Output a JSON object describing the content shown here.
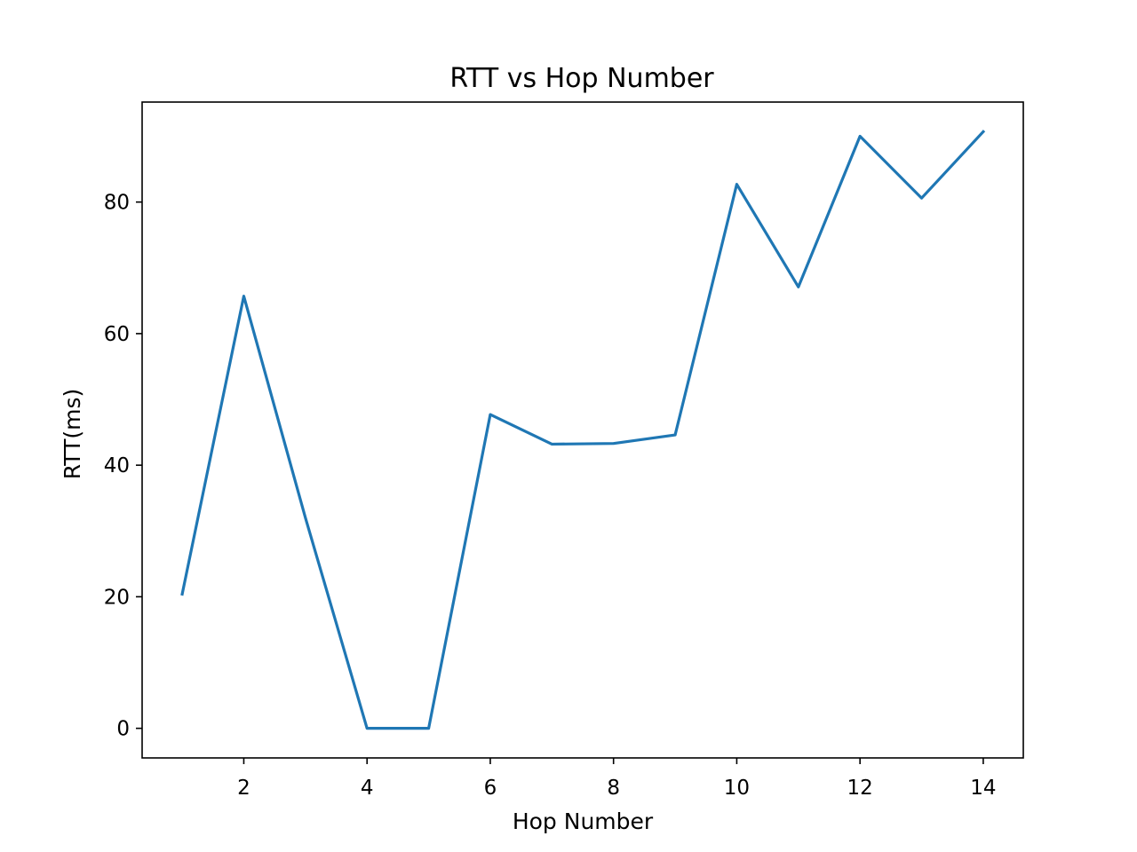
{
  "chart_data": {
    "type": "line",
    "title": "RTT vs Hop Number",
    "xlabel": "Hop Number",
    "ylabel": "RTT(ms)",
    "xlim": [
      0.35,
      14.65
    ],
    "ylim": [
      -4.5,
      95.2
    ],
    "xticks": [
      2,
      4,
      6,
      8,
      10,
      12,
      14
    ],
    "yticks": [
      0,
      20,
      40,
      60,
      80
    ],
    "grid": false,
    "series": [
      {
        "color": "#1f77b4",
        "x": [
          1,
          2,
          3,
          4,
          5,
          6,
          7,
          8,
          9,
          10,
          11,
          12,
          13,
          14
        ],
        "y": [
          20.4,
          65.7,
          32.0,
          0.0,
          0.0,
          47.7,
          43.2,
          43.3,
          44.6,
          82.7,
          67.1,
          90.0,
          80.6,
          90.7
        ]
      }
    ]
  }
}
